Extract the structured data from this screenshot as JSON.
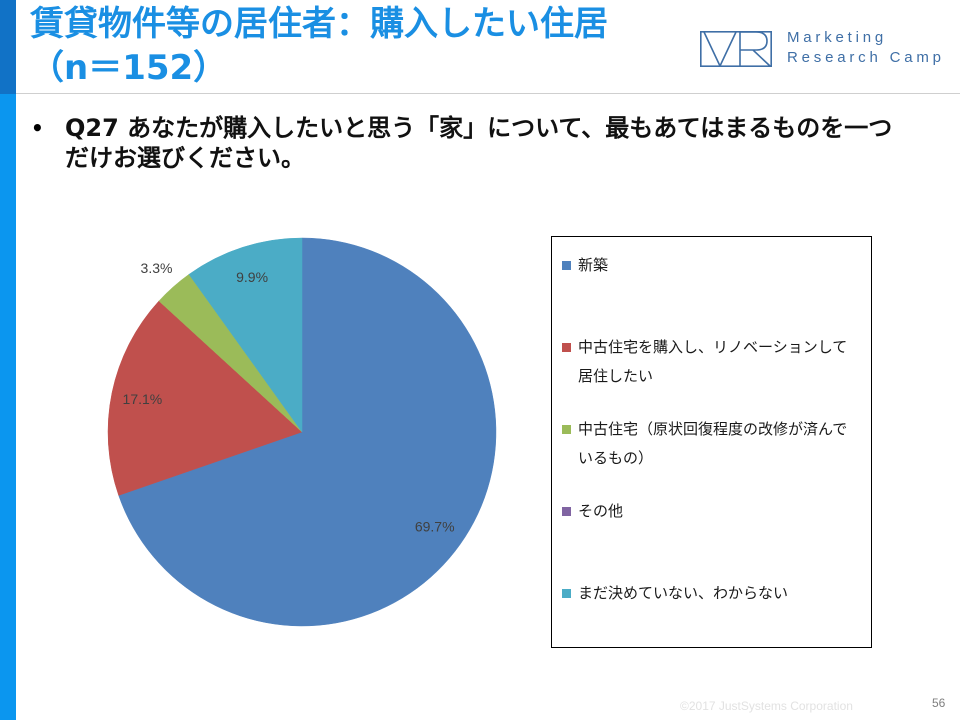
{
  "slide": {
    "title_lines": [
      "賃貸物件等の居住者：購入したい住居",
      "（n＝152）"
    ],
    "logo": {
      "mark": "VR",
      "text_lines": [
        "Marketing",
        "Research Camp"
      ]
    },
    "question": {
      "bullet": "•",
      "lines": [
        "Q27 あなたが購入したいと思う「家」について、最もあてはまるものを一つ",
        "だけお選びください。"
      ]
    },
    "footer": {
      "copyright": "©2017 JustSystems Corporation",
      "page_number": "56"
    },
    "colors": {
      "title": "#1a8fe3",
      "side_bar": "#0b96ef",
      "side_bar_top": "#1172c6",
      "logo": "#3f6fa6"
    }
  },
  "chart_data": {
    "type": "pie",
    "categories": [
      "新築",
      "中古住宅を購入し、リノベーションして居住したい",
      "中古住宅（原状回復程度の改修が済んでいるもの）",
      "その他",
      "まだ決めていない、わからない"
    ],
    "values": [
      69.7,
      17.1,
      3.3,
      0.0,
      9.9
    ],
    "unit": "%",
    "data_labels": [
      "69.7%",
      "17.1%",
      "3.3%",
      null,
      "9.9%"
    ],
    "colors": [
      "#4f81bd",
      "#c0504d",
      "#9bbb59",
      "#8064a2",
      "#4bacc6"
    ],
    "start": "top",
    "direction": "clockwise",
    "legend_position": "right"
  }
}
